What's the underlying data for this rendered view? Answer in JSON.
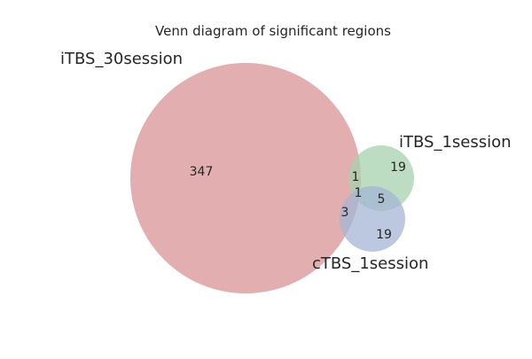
{
  "title": "Venn diagram of significant regions",
  "sets": [
    {
      "name": "iTBS_30session",
      "color": "#dfa5a7"
    },
    {
      "name": "iTBS_1session",
      "color": "#a5d2ac"
    },
    {
      "name": "cTBS_1session",
      "color": "#a4b5d6"
    }
  ],
  "regions": [
    {
      "name": "iTBS_30session only",
      "count": "347"
    },
    {
      "name": "iTBS_1session only",
      "count": "19"
    },
    {
      "name": "cTBS_1session only",
      "count": "19"
    },
    {
      "name": "iTBS_30session & iTBS_1session",
      "count": "1"
    },
    {
      "name": "iTBS_30session & cTBS_1session",
      "count": "3"
    },
    {
      "name": "iTBS_1session & cTBS_1session",
      "count": "5"
    },
    {
      "name": "all three",
      "count": "1"
    }
  ]
}
